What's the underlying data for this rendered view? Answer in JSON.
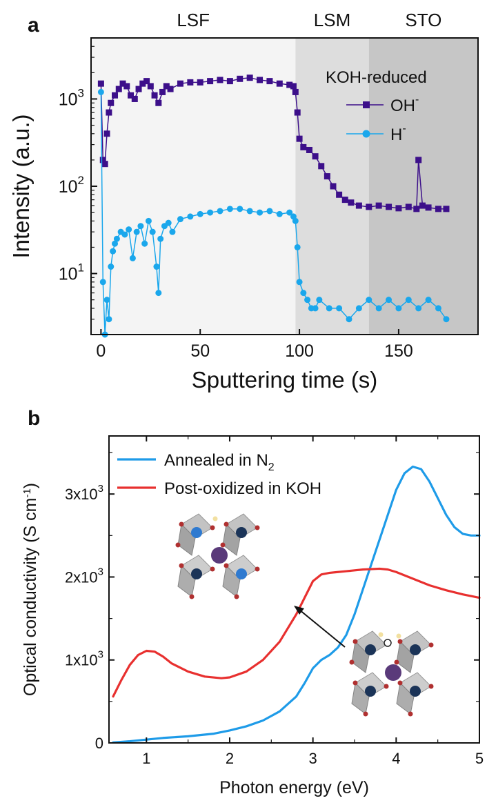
{
  "chart_data": [
    {
      "panel": "a",
      "type": "scatter",
      "title": "",
      "xlabel": "Sputtering time (s)",
      "ylabel": "Intensity (a.u.)",
      "xlim": [
        -5,
        190
      ],
      "ylim": [
        2,
        5000
      ],
      "yscale": "log",
      "x_ticks": [
        0,
        50,
        100,
        150
      ],
      "y_ticks": [
        {
          "value": 10,
          "base": "10",
          "exp": "1"
        },
        {
          "value": 100,
          "base": "10",
          "exp": "2"
        },
        {
          "value": 1000,
          "base": "10",
          "exp": "3"
        }
      ],
      "regions": [
        {
          "label": "LSF",
          "x": [
            -5,
            98
          ],
          "color": "#f4f4f4"
        },
        {
          "label": "LSM",
          "x": [
            98,
            135
          ],
          "color": "#dddddd"
        },
        {
          "label": "STO",
          "x": [
            135,
            190
          ],
          "color": "#c6c6c6"
        }
      ],
      "legend": {
        "title": "KOH-reduced",
        "placement": "top-right",
        "entries": [
          {
            "base": "OH",
            "sup": "-",
            "color": "#3c0f8a",
            "marker": "square"
          },
          {
            "base": "H",
            "sup": "-",
            "color": "#1aa7ec",
            "marker": "circle"
          }
        ]
      },
      "series": [
        {
          "name": "OH-",
          "color": "#3c0f8a",
          "marker": "square",
          "x": [
            0,
            1,
            2,
            3,
            4,
            5,
            7,
            9,
            11,
            13,
            15,
            17,
            19,
            21,
            23,
            25,
            27,
            29,
            31,
            33,
            35,
            40,
            45,
            50,
            55,
            60,
            65,
            70,
            75,
            80,
            85,
            90,
            95,
            97,
            98,
            99,
            100,
            102,
            105,
            108,
            111,
            114,
            117,
            120,
            123,
            126,
            130,
            135,
            140,
            145,
            150,
            155,
            159,
            160,
            162,
            165,
            170,
            174
          ],
          "y": [
            1500,
            200,
            180,
            400,
            700,
            900,
            1100,
            1300,
            1500,
            1400,
            1100,
            1000,
            1300,
            1500,
            1600,
            1400,
            1100,
            900,
            1200,
            1400,
            1300,
            1500,
            1550,
            1550,
            1600,
            1650,
            1600,
            1700,
            1750,
            1650,
            1600,
            1500,
            1450,
            1400,
            1200,
            700,
            350,
            280,
            260,
            220,
            170,
            130,
            100,
            80,
            70,
            65,
            60,
            58,
            60,
            58,
            56,
            58,
            55,
            200,
            60,
            57,
            55,
            55
          ]
        },
        {
          "name": "H-",
          "color": "#1aa7ec",
          "marker": "circle",
          "x": [
            0,
            1,
            2,
            3,
            4,
            5,
            6,
            7,
            8,
            10,
            12,
            14,
            16,
            18,
            20,
            22,
            24,
            26,
            28,
            29,
            30,
            32,
            34,
            36,
            40,
            45,
            50,
            55,
            60,
            65,
            70,
            75,
            80,
            85,
            90,
            95,
            97,
            98,
            99,
            100,
            102,
            104,
            106,
            108,
            110,
            115,
            120,
            125,
            130,
            135,
            140,
            145,
            150,
            155,
            160,
            165,
            170,
            174
          ],
          "y": [
            1200,
            8,
            2,
            5,
            3,
            12,
            18,
            22,
            25,
            30,
            28,
            32,
            15,
            30,
            35,
            22,
            40,
            30,
            12,
            6,
            25,
            35,
            38,
            30,
            42,
            45,
            48,
            50,
            52,
            55,
            55,
            52,
            50,
            52,
            48,
            50,
            45,
            40,
            20,
            8,
            6,
            5,
            4,
            4,
            5,
            4,
            4,
            3,
            4,
            5,
            4,
            5,
            4,
            5,
            4,
            5,
            4,
            3
          ]
        }
      ]
    },
    {
      "panel": "b",
      "type": "line",
      "title": "",
      "xlabel": "Photon energy (eV)",
      "ylabel": "Optical conductivity (S cm",
      "ylabel_sup": "-1",
      "ylabel_close": ")",
      "xlim": [
        0.55,
        5.0
      ],
      "ylim": [
        0,
        3700
      ],
      "x_ticks": [
        1,
        2,
        3,
        4,
        5
      ],
      "y_ticks": [
        {
          "value": 0,
          "label": "0"
        },
        {
          "value": 1000,
          "label": "1x10",
          "sup": "3"
        },
        {
          "value": 2000,
          "label": "2x10",
          "sup": "3"
        },
        {
          "value": 3000,
          "label": "3x10",
          "sup": "3"
        }
      ],
      "legend": {
        "placement": "top-left",
        "entries": [
          {
            "text": "Annealed in N",
            "sub": "2",
            "color": "#1e9be8"
          },
          {
            "text": "Post-oxidized in KOH",
            "color": "#e8302f"
          }
        ]
      },
      "series": [
        {
          "name": "Annealed in N2",
          "color": "#1e9be8",
          "x": [
            0.6,
            0.8,
            1.0,
            1.2,
            1.5,
            1.8,
            2.0,
            2.2,
            2.4,
            2.6,
            2.8,
            2.9,
            3.0,
            3.1,
            3.2,
            3.3,
            3.4,
            3.5,
            3.6,
            3.7,
            3.8,
            3.9,
            4.0,
            4.1,
            4.2,
            4.3,
            4.4,
            4.5,
            4.6,
            4.7,
            4.8,
            4.9,
            5.0
          ],
          "y": [
            5,
            20,
            40,
            60,
            80,
            110,
            150,
            200,
            270,
            380,
            560,
            720,
            900,
            1000,
            1060,
            1150,
            1300,
            1550,
            1850,
            2150,
            2450,
            2750,
            3050,
            3250,
            3330,
            3300,
            3150,
            2950,
            2750,
            2600,
            2520,
            2500,
            2500
          ]
        },
        {
          "name": "Post-oxidized in KOH",
          "color": "#e8302f",
          "x": [
            0.6,
            0.7,
            0.8,
            0.9,
            1.0,
            1.1,
            1.2,
            1.3,
            1.5,
            1.7,
            1.9,
            2.0,
            2.2,
            2.4,
            2.6,
            2.8,
            2.9,
            3.0,
            3.1,
            3.2,
            3.3,
            3.4,
            3.6,
            3.8,
            3.9,
            4.0,
            4.2,
            4.4,
            4.6,
            4.8,
            5.0
          ],
          "y": [
            560,
            760,
            940,
            1060,
            1110,
            1100,
            1040,
            960,
            860,
            800,
            780,
            790,
            860,
            1000,
            1220,
            1550,
            1750,
            1950,
            2030,
            2050,
            2060,
            2070,
            2090,
            2100,
            2090,
            2060,
            1980,
            1900,
            1840,
            1790,
            1750
          ]
        }
      ]
    }
  ]
}
